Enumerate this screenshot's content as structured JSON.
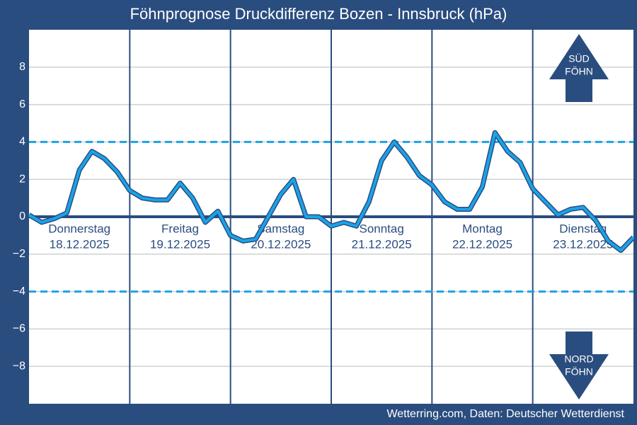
{
  "chart_data": {
    "type": "line",
    "title": "Föhnprognose Druckdifferenz Bozen - Innsbruck (hPa)",
    "source": "Wetterring.com, Daten: Deutscher Wetterdienst",
    "days": [
      {
        "name": "Donnerstag",
        "date": "18.12.2025"
      },
      {
        "name": "Freitag",
        "date": "19.12.2025"
      },
      {
        "name": "Samstag",
        "date": "20.12.2025"
      },
      {
        "name": "Sonntag",
        "date": "21.12.2025"
      },
      {
        "name": "Montag",
        "date": "22.12.2025"
      },
      {
        "name": "Dienstag",
        "date": "23.12.2025"
      }
    ],
    "series": [
      {
        "color": "#1aa3e8",
        "values": [
          0.1,
          -0.3,
          -0.1,
          0.2,
          2.5,
          3.5,
          3.1,
          2.4,
          1.4,
          1.0,
          0.9,
          0.9,
          1.8,
          1.0,
          -0.3,
          0.3,
          -1.0,
          -1.3,
          -1.2,
          0.0,
          1.2,
          2.0,
          0.0,
          0.0,
          -0.5,
          -0.3,
          -0.5,
          0.8,
          3.0,
          4.0,
          3.2,
          2.2,
          1.7,
          0.8,
          0.4,
          0.4,
          1.6,
          4.5,
          3.5,
          2.9,
          1.5,
          0.8,
          0.1,
          0.4,
          0.5,
          -0.2,
          -1.3,
          -1.8,
          -1.1
        ]
      }
    ],
    "thresholds": [
      4,
      -4
    ],
    "ylim": [
      -10,
      10
    ],
    "yticks": [
      8,
      6,
      4,
      2,
      0,
      {
        "value": -2,
        "label": "−2"
      },
      {
        "value": -4,
        "label": "−4"
      },
      {
        "value": -6,
        "label": "−6"
      },
      {
        "value": -8,
        "label": "−8"
      }
    ],
    "grid": true,
    "arrows": {
      "up": [
        "SÜD",
        "FÖHN"
      ],
      "down": [
        "NORD",
        "FÖHN"
      ]
    }
  }
}
